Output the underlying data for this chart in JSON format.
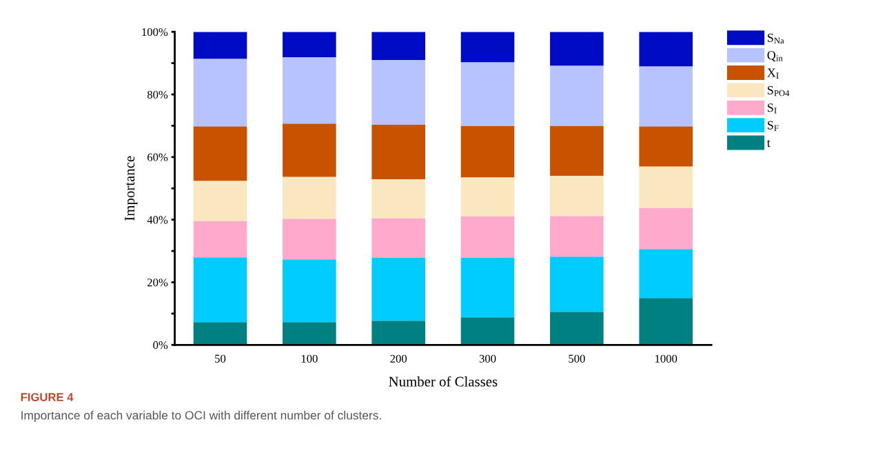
{
  "chart_data": {
    "type": "bar",
    "stacked": true,
    "xlabel": "Number of Classes",
    "ylabel": "Importance",
    "categories": [
      "50",
      "100",
      "200",
      "300",
      "500",
      "1000"
    ],
    "series": [
      {
        "name": "t",
        "color": "#008080",
        "values": [
          7.3,
          7.3,
          7.7,
          8.8,
          10.6,
          15.0
        ]
      },
      {
        "name": "S$_{F}$",
        "color": "#00ccff",
        "values": [
          20.7,
          20.0,
          20.1,
          19.0,
          17.6,
          15.6
        ]
      },
      {
        "name": "S$_{I}$",
        "color": "#ffaacc",
        "values": [
          11.6,
          13.0,
          12.7,
          13.2,
          13.0,
          13.2
        ]
      },
      {
        "name": "S$_{PO4}$",
        "color": "#fae6bf",
        "values": [
          12.8,
          13.4,
          12.4,
          12.5,
          12.8,
          13.2
        ]
      },
      {
        "name": "X$_{I}$",
        "color": "#c85200",
        "values": [
          17.4,
          17.0,
          17.4,
          16.5,
          16.0,
          12.8
        ]
      },
      {
        "name": "Q$_{in}$",
        "color": "#b6c3fe",
        "values": [
          21.6,
          21.2,
          20.7,
          20.3,
          19.2,
          19.2
        ]
      },
      {
        "name": "S$_{Na}$",
        "color": "#000cc3",
        "values": [
          8.6,
          8.1,
          9.0,
          9.7,
          10.8,
          11.0
        ]
      }
    ],
    "ylim": [
      0,
      100
    ],
    "yticks": [
      {
        "value": 0,
        "label": "0%"
      },
      {
        "value": 10,
        "label": null
      },
      {
        "value": 20,
        "label": "20%"
      },
      {
        "value": 30,
        "label": null
      },
      {
        "value": 40,
        "label": "40%"
      },
      {
        "value": 50,
        "label": null
      },
      {
        "value": 60,
        "label": "60%"
      },
      {
        "value": 70,
        "label": null
      },
      {
        "value": 80,
        "label": "80%"
      },
      {
        "value": 90,
        "label": null
      },
      {
        "value": 100,
        "label": "100%"
      }
    ],
    "grid": false,
    "legend": "top right",
    "annotations": [
      "FIGURE 4",
      "Importance of each variable to OCI with different number of clusters."
    ]
  }
}
